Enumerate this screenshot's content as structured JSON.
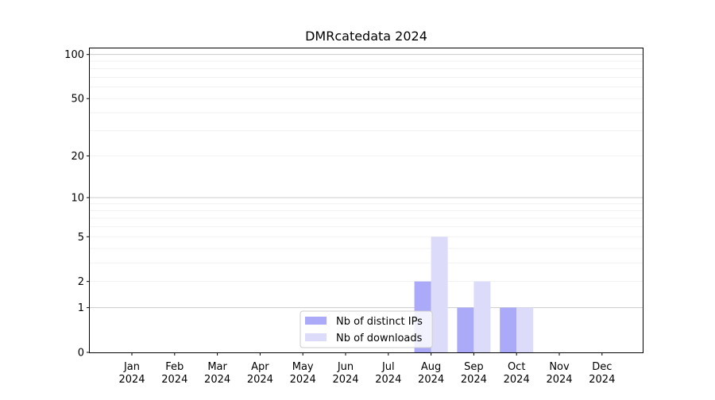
{
  "chart_data": {
    "type": "bar",
    "title": "DMRcatedata 2024",
    "xlabel": "",
    "ylabel": "",
    "yscale": "log1p",
    "ylim": [
      0,
      110
    ],
    "y_ticks": [
      0,
      1,
      2,
      5,
      10,
      20,
      50,
      100
    ],
    "categories": [
      [
        "Jan",
        "2024"
      ],
      [
        "Feb",
        "2024"
      ],
      [
        "Mar",
        "2024"
      ],
      [
        "Apr",
        "2024"
      ],
      [
        "May",
        "2024"
      ],
      [
        "Jun",
        "2024"
      ],
      [
        "Jul",
        "2024"
      ],
      [
        "Aug",
        "2024"
      ],
      [
        "Sep",
        "2024"
      ],
      [
        "Oct",
        "2024"
      ],
      [
        "Nov",
        "2024"
      ],
      [
        "Dec",
        "2024"
      ]
    ],
    "series": [
      {
        "name": "Nb of distinct IPs",
        "color": "#aaaaf8",
        "values": [
          0,
          0,
          0,
          0,
          0,
          0,
          0,
          2,
          1,
          1,
          0,
          0
        ]
      },
      {
        "name": "Nb of downloads",
        "color": "#dcdcfa",
        "values": [
          0,
          0,
          0,
          0,
          0,
          0,
          0,
          5,
          2,
          1,
          0,
          0
        ]
      }
    ],
    "legend_position": "lower center",
    "grid": "horizontal"
  }
}
